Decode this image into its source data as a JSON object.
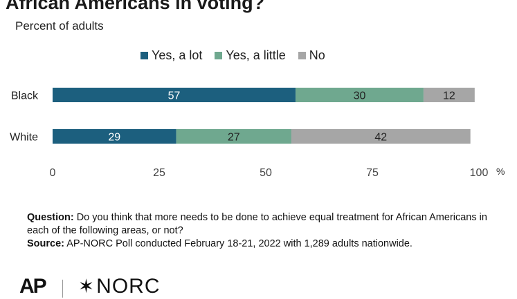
{
  "header": {
    "title": "African Americans in voting?",
    "subtitle": "Percent of adults"
  },
  "legend": [
    {
      "label": "Yes, a lot",
      "color": "#1c5f7e"
    },
    {
      "label": "Yes, a little",
      "color": "#6fa88f"
    },
    {
      "label": "No",
      "color": "#a6a6a6"
    }
  ],
  "chart_data": {
    "type": "bar",
    "orientation": "horizontal",
    "stacked": true,
    "categories": [
      "Black",
      "White"
    ],
    "series": [
      {
        "name": "Yes, a lot",
        "values": [
          57,
          29
        ],
        "color": "#1c5f7e"
      },
      {
        "name": "Yes, a little",
        "values": [
          30,
          27
        ],
        "color": "#6fa88f"
      },
      {
        "name": "No",
        "values": [
          12,
          42
        ],
        "color": "#a6a6a6"
      }
    ],
    "xlim": [
      0,
      100
    ],
    "xticks": [
      0,
      25,
      50,
      75,
      100
    ],
    "xunit": "%",
    "grid": false,
    "legend_position": "top"
  },
  "notes": {
    "question_label": "Question:",
    "question_text": " Do you think that more needs to be done to achieve equal treatment for African Americans in each of the following areas, or not?",
    "source_label": "Source:",
    "source_text": " AP-NORC Poll conducted February 18-21, 2022 with 1,289 adults nationwide."
  },
  "logos": {
    "ap": "AP",
    "norc": "NORC"
  }
}
